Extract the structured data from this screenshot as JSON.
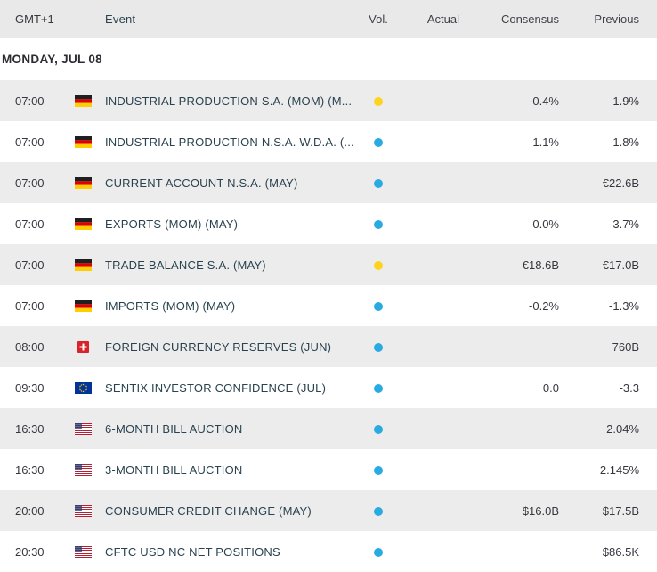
{
  "header": {
    "gmt": "GMT+1",
    "event": "Event",
    "vol": "Vol.",
    "actual": "Actual",
    "consensus": "Consensus",
    "previous": "Previous"
  },
  "date_header": "MONDAY, JUL 08",
  "colors": {
    "yellow": "#ffd21e",
    "blue": "#29abe2",
    "header_bg": "#e9e9e9",
    "row_alt_bg": "#ececec",
    "event_text": "#29424f",
    "flag_de": [
      "#1f1f1f",
      "#dd0000",
      "#ffce00"
    ],
    "flag_ch": [
      "#d8232a",
      "#ffffff"
    ],
    "flag_eu": [
      "#013399",
      "#ffcc00"
    ],
    "flag_us": [
      "#b22234",
      "#ffffff",
      "#3c3b6e"
    ]
  },
  "rows": [
    {
      "time": "07:00",
      "country": "de",
      "event": "INDUSTRIAL PRODUCTION S.A. (MOM) (M...",
      "vol": "yellow",
      "actual": "",
      "consensus": "-0.4%",
      "previous": "-1.9%"
    },
    {
      "time": "07:00",
      "country": "de",
      "event": "INDUSTRIAL PRODUCTION N.S.A. W.D.A. (...",
      "vol": "blue",
      "actual": "",
      "consensus": "-1.1%",
      "previous": "-1.8%"
    },
    {
      "time": "07:00",
      "country": "de",
      "event": "CURRENT ACCOUNT N.S.A. (MAY)",
      "vol": "blue",
      "actual": "",
      "consensus": "",
      "previous": "€22.6B"
    },
    {
      "time": "07:00",
      "country": "de",
      "event": "EXPORTS (MOM) (MAY)",
      "vol": "blue",
      "actual": "",
      "consensus": "0.0%",
      "previous": "-3.7%"
    },
    {
      "time": "07:00",
      "country": "de",
      "event": "TRADE BALANCE S.A. (MAY)",
      "vol": "yellow",
      "actual": "",
      "consensus": "€18.6B",
      "previous": "€17.0B"
    },
    {
      "time": "07:00",
      "country": "de",
      "event": "IMPORTS (MOM) (MAY)",
      "vol": "blue",
      "actual": "",
      "consensus": "-0.2%",
      "previous": "-1.3%"
    },
    {
      "time": "08:00",
      "country": "ch",
      "event": "FOREIGN CURRENCY RESERVES (JUN)",
      "vol": "blue",
      "actual": "",
      "consensus": "",
      "previous": "760B"
    },
    {
      "time": "09:30",
      "country": "eu",
      "event": "SENTIX INVESTOR CONFIDENCE (JUL)",
      "vol": "blue",
      "actual": "",
      "consensus": "0.0",
      "previous": "-3.3"
    },
    {
      "time": "16:30",
      "country": "us",
      "event": "6-MONTH BILL AUCTION",
      "vol": "blue",
      "actual": "",
      "consensus": "",
      "previous": "2.04%"
    },
    {
      "time": "16:30",
      "country": "us",
      "event": "3-MONTH BILL AUCTION",
      "vol": "blue",
      "actual": "",
      "consensus": "",
      "previous": "2.145%"
    },
    {
      "time": "20:00",
      "country": "us",
      "event": "CONSUMER CREDIT CHANGE (MAY)",
      "vol": "blue",
      "actual": "",
      "consensus": "$16.0B",
      "previous": "$17.5B"
    },
    {
      "time": "20:30",
      "country": "us",
      "event": "CFTC USD NC NET POSITIONS",
      "vol": "blue",
      "actual": "",
      "consensus": "",
      "previous": "$86.5K"
    }
  ]
}
